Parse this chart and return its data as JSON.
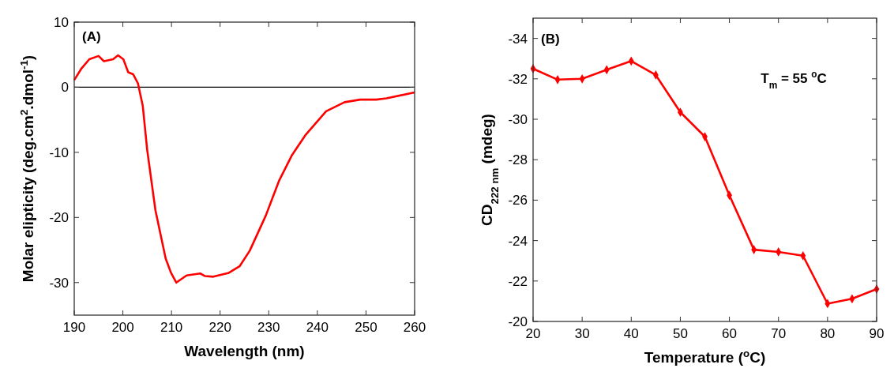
{
  "chart_data": [
    {
      "type": "line",
      "xlabel": "Wavelength (nm)",
      "ylabel": "Molar elipticity (deg.cm$^{2}$.dmol$^{-1}$)",
      "xlim": [
        190,
        260
      ],
      "ylim": [
        -35,
        10
      ],
      "xticks": [
        190,
        200,
        210,
        220,
        230,
        240,
        250,
        260
      ],
      "yticks": [
        -30,
        -20,
        -10,
        0,
        10
      ],
      "marker": "none",
      "grid": false,
      "annotations": [
        "(A)"
      ],
      "ref_lines": [
        {
          "axis": "y",
          "value": 0,
          "color": "#000000"
        }
      ],
      "series": [
        {
          "color": "#ff0000",
          "x": [
            190,
            191.5,
            193.1,
            195,
            196.1,
            198,
            199,
            200.1,
            201.1,
            202.1,
            203.1,
            204.1,
            205,
            206.7,
            208.8,
            209.9,
            211,
            213.1,
            215.9,
            216.9,
            218.6,
            221.8,
            224,
            226.1,
            229.4,
            232.1,
            234.8,
            237.5,
            241.8,
            245.6,
            248.8,
            252.1,
            254.2,
            260
          ],
          "values": [
            1.1,
            2.9,
            4.3,
            4.8,
            4,
            4.3,
            4.9,
            4.3,
            2.3,
            2,
            0.6,
            -2.9,
            -9.6,
            -18.9,
            -26.3,
            -28.5,
            -30,
            -28.9,
            -28.6,
            -29,
            -29.1,
            -28.5,
            -27.5,
            -25.1,
            -19.7,
            -14.4,
            -10.4,
            -7.4,
            -3.7,
            -2.3,
            -1.9,
            -1.9,
            -1.7,
            -0.8
          ]
        }
      ]
    },
    {
      "type": "line",
      "xlabel": "Temperature ($^{o}$C)",
      "ylabel": "CD$_{222 nm}$ (mdeg)",
      "xlim": [
        20,
        90
      ],
      "ylim": [
        -20,
        -35
      ],
      "xticks": [
        20,
        30,
        40,
        50,
        60,
        70,
        80,
        90
      ],
      "yticks": [
        -34,
        -32,
        -30,
        -28,
        -26,
        -24,
        -22,
        -20
      ],
      "marker": "diamond",
      "grid": false,
      "annotations": [
        "(B)",
        "T$_{m}$ = 55 $^{o}$C"
      ],
      "series": [
        {
          "color": "#ff0000",
          "x": [
            20,
            25,
            30,
            35,
            40,
            45,
            50,
            55,
            60,
            65,
            70,
            75,
            80,
            85,
            90
          ],
          "values": [
            -32.5,
            -31.96,
            -32,
            -32.45,
            -32.88,
            -32.19,
            -30.35,
            -29.14,
            -26.24,
            -23.55,
            -23.44,
            -23.25,
            -20.88,
            -21.12,
            -21.6
          ]
        }
      ]
    }
  ]
}
